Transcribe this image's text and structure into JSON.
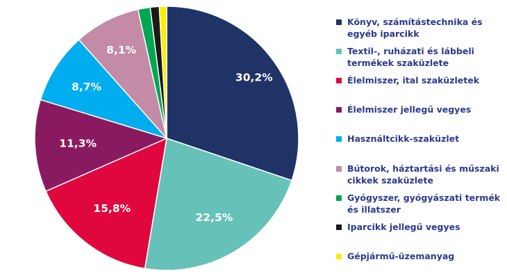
{
  "chart_data": {
    "type": "pie",
    "title": "",
    "unit": "%",
    "slices": [
      {
        "value": 30.2,
        "label": "30,2%",
        "name": "Könyv, számítástechnika és egyéb iparcikk",
        "color": "#1f3366"
      },
      {
        "value": 22.5,
        "label": "22,5%",
        "name": "Textil-, ruházati és lábbeli termékek szaküzlete",
        "color": "#66c2b8"
      },
      {
        "value": 15.8,
        "label": "15,8%",
        "name": "Élelmiszer, ital szaküzletek",
        "color": "#e0073f"
      },
      {
        "value": 11.3,
        "label": "11,3%",
        "name": "Élelmiszer jellegű vegyes",
        "color": "#8a1a5f"
      },
      {
        "value": 8.7,
        "label": "8,7%",
        "name": "Használtcikk-szaküzlet",
        "color": "#00aeef"
      },
      {
        "value": 8.1,
        "label": "8,1%",
        "name": "Bútorok, háztartási és műszaki cikkek szaküzlete",
        "color": "#c48ba6"
      },
      {
        "value": 1.5,
        "label": "",
        "name": "Gyógyszer, gyógyászati termék és illatszer",
        "color": "#00a651"
      },
      {
        "value": 1.1,
        "label": "",
        "name": "Iparcikk jellegű vegyes",
        "color": "#1a1a1a"
      },
      {
        "value": 0.9,
        "label": "",
        "name": "Gépjármű-üzemanyag",
        "color": "#ffed00"
      }
    ],
    "legend_placement": "right"
  }
}
